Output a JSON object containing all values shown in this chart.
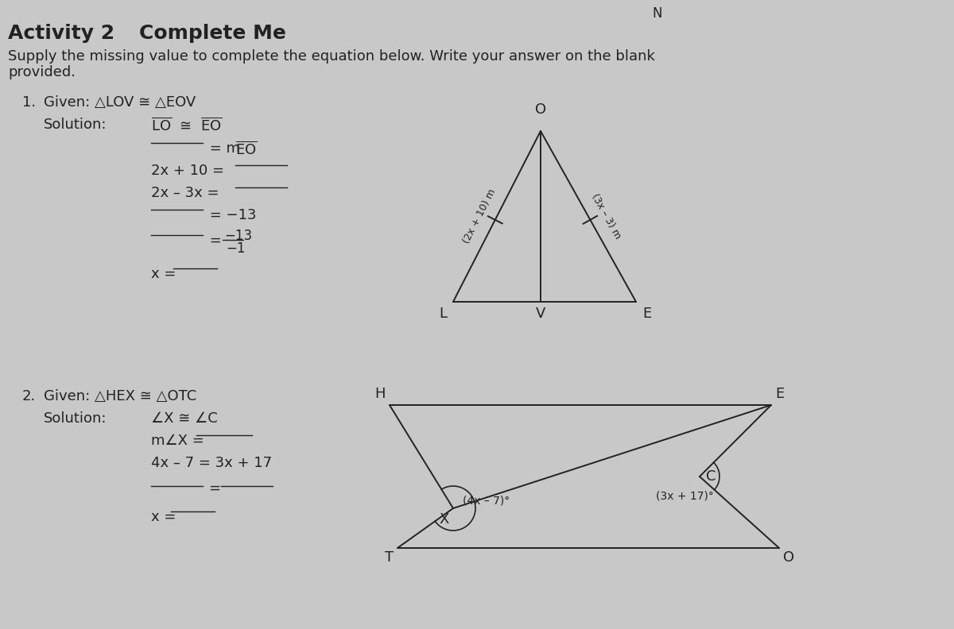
{
  "bg_color": "#c8c8c8",
  "text_color": "#222222",
  "title": "Activity 2",
  "subtitle": "Complete Me",
  "instruction_line1": "Supply the missing value to complete the equation below. Write your answer on the blank",
  "instruction_line2": "provided.",
  "N_label": "N",
  "p1_given": "Given: △LOV ≅ △EOV",
  "p1_sol": "Solution:",
  "p1_l1": "LO ≅ EO",
  "p1_l2a": "______  = m",
  "p1_l2b": "EO",
  "p1_l3": "2x + 10 = ______",
  "p1_l4": "2x – 3x = ______",
  "p1_l5": "______  = −13",
  "p1_l6a": "______  = ",
  "p1_l6_num": "−13",
  "p1_l6_den": "−1",
  "p1_l7": "x =  ______",
  "p2_given": "Given: △HEX ≅ △OTC",
  "p2_sol": "Solution:",
  "p2_l1": "∠X ≅ ∠C",
  "p2_l2": "m∠X =  ______",
  "p2_l3": "4x – 7 = 3x + 17",
  "p2_l4a": "______",
  "p2_l4eq": "=",
  "p2_l4b": "______",
  "p2_l5": "x =  ______",
  "tri1_left_label": "(2x + 10) m",
  "tri1_right_label": "(3x – 3) m",
  "tri2_ang_X": "(4x – 7)°",
  "tri2_ang_C": "(3x + 17)°"
}
